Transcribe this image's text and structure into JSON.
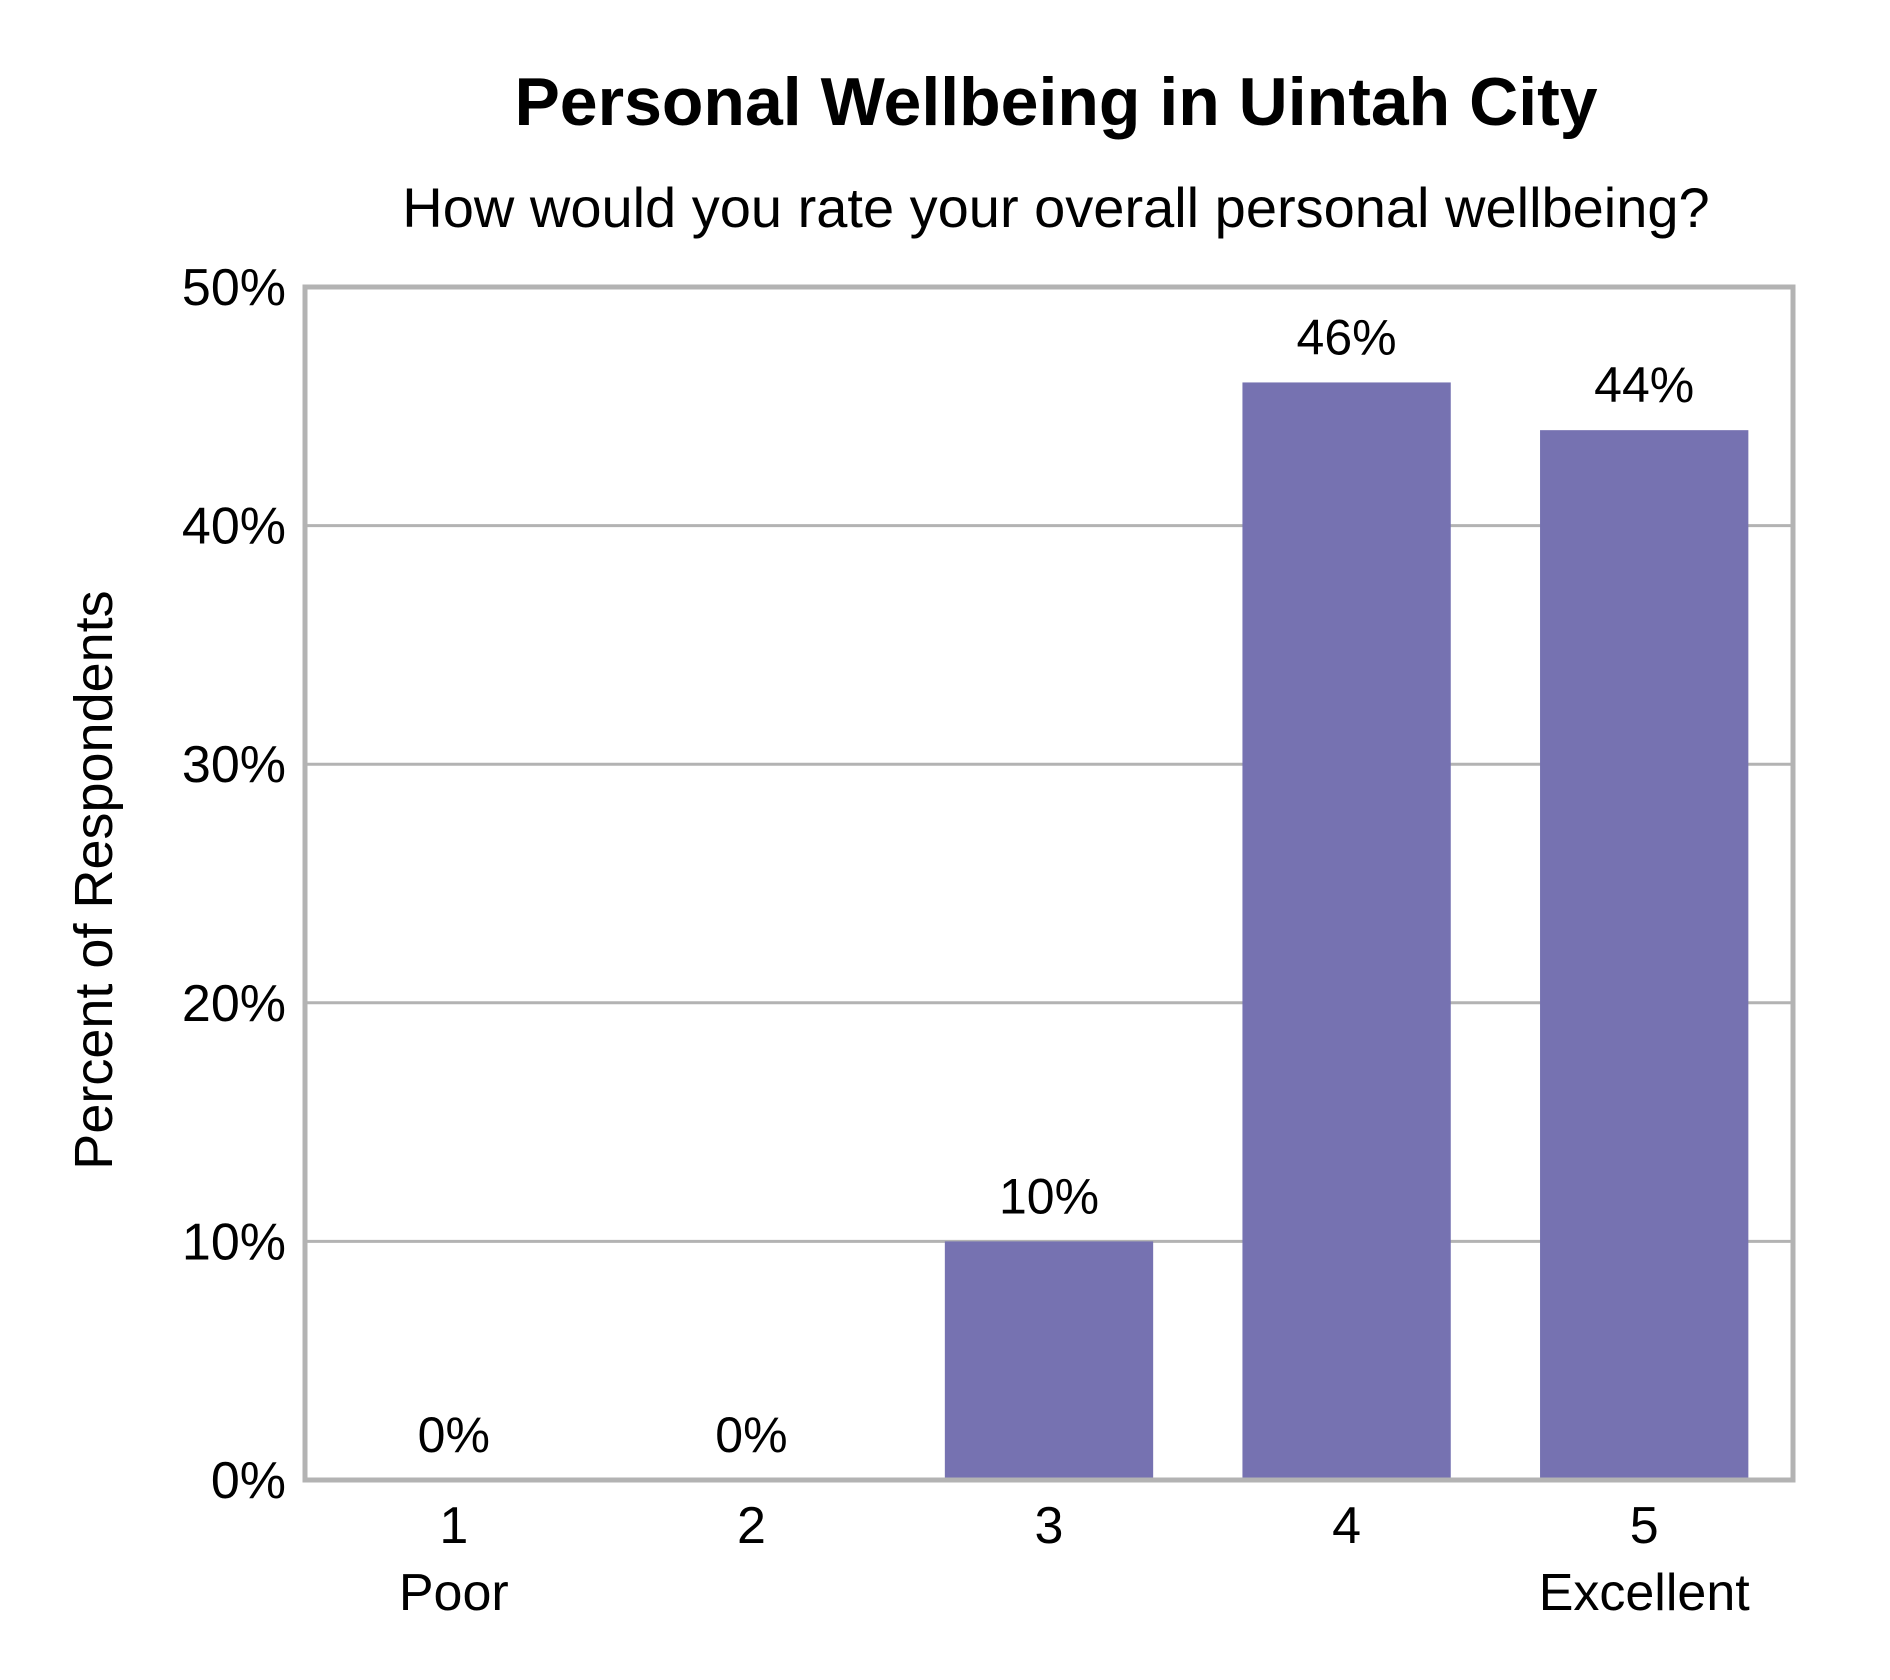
{
  "chart_data": {
    "type": "bar",
    "title": "Personal Wellbeing in Uintah City",
    "subtitle": "How would you rate your overall personal wellbeing?",
    "ylabel": "Percent of Respondents",
    "xlabel": "",
    "categories": [
      "1",
      "2",
      "3",
      "4",
      "5"
    ],
    "category_sublabels": [
      "Poor",
      "",
      "",
      "",
      "Excellent"
    ],
    "values": [
      0,
      0,
      10,
      46,
      44
    ],
    "data_labels": [
      "0%",
      "0%",
      "10%",
      "46%",
      "44%"
    ],
    "ylim": [
      0,
      50
    ],
    "yticks": [
      0,
      10,
      20,
      30,
      40,
      50
    ],
    "ytick_labels": [
      "0%",
      "10%",
      "20%",
      "30%",
      "40%",
      "50%"
    ],
    "grid": true,
    "legend": "none",
    "colors": {
      "bar": "#7672b1",
      "grid": "#b3b3b3",
      "frame": "#b3b3b3"
    }
  }
}
